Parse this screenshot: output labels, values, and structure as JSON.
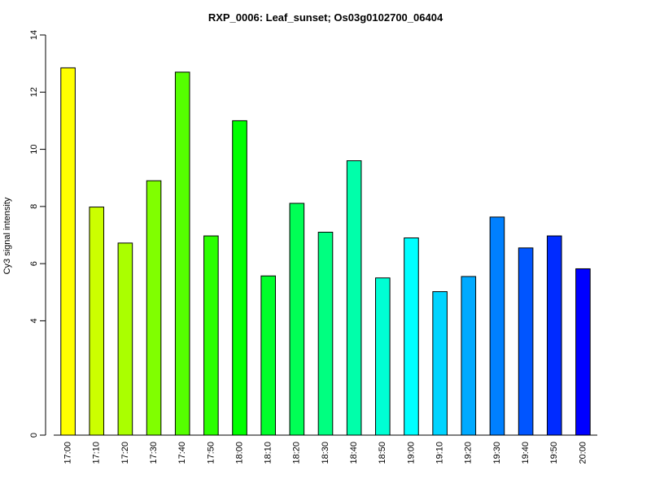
{
  "chart_data": {
    "type": "bar",
    "title": "RXP_0006: Leaf_sunset; Os03g0102700_06404",
    "xlabel": "",
    "ylabel": "Cy3 signal intensity",
    "ylim": [
      0,
      14
    ],
    "y_ticks": [
      0,
      4,
      6,
      8,
      10,
      12,
      14
    ],
    "grid": false,
    "categories": [
      "17:00",
      "17:10",
      "17:20",
      "17:30",
      "17:40",
      "17:50",
      "18:00",
      "18:10",
      "18:20",
      "18:30",
      "18:40",
      "18:50",
      "19:00",
      "19:10",
      "19:20",
      "19:30",
      "19:40",
      "19:50",
      "20:00"
    ],
    "values": [
      12.85,
      7.98,
      6.72,
      8.9,
      12.7,
      6.97,
      11.0,
      5.57,
      8.11,
      7.1,
      9.6,
      5.5,
      6.9,
      5.02,
      5.55,
      7.63,
      6.55,
      6.97,
      5.82
    ],
    "colors": [
      "#ffff00",
      "#ccff00",
      "#aaff00",
      "#80ff00",
      "#55ff00",
      "#2bff00",
      "#00ff00",
      "#00ff2b",
      "#00ff55",
      "#00ff80",
      "#00ffaa",
      "#00ffd4",
      "#00ffff",
      "#00d4ff",
      "#00aaff",
      "#0080ff",
      "#0055ff",
      "#002bff",
      "#0000ff"
    ]
  }
}
